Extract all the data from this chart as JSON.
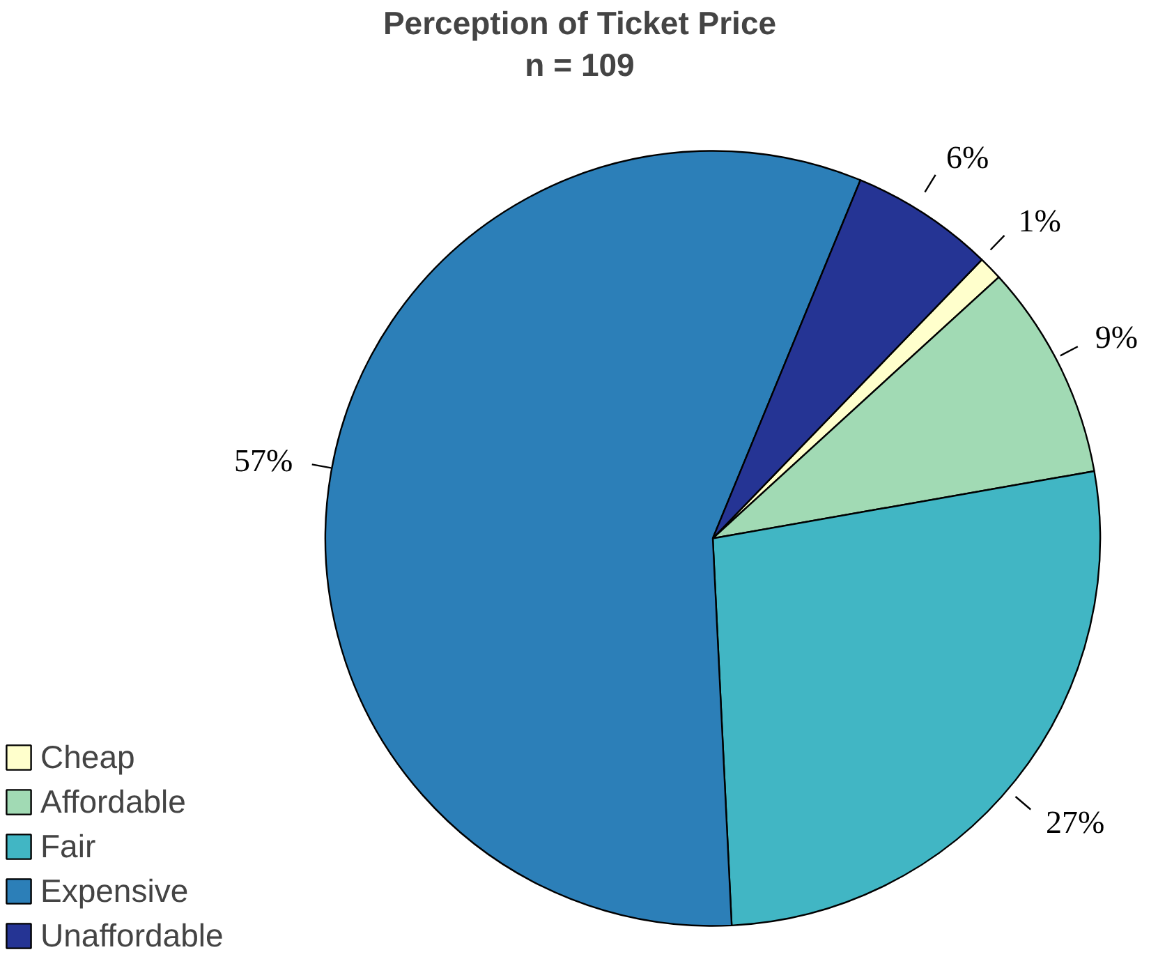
{
  "chart_data": {
    "type": "pie",
    "title": "Perception of Ticket Price",
    "subtitle": "n = 109",
    "categories": [
      "Cheap",
      "Affordable",
      "Fair",
      "Expensive",
      "Unaffordable"
    ],
    "values": [
      1,
      9,
      27,
      57,
      6
    ],
    "colors": [
      "#ffffcc",
      "#a1dab4",
      "#41b6c4",
      "#2c7fb8",
      "#253494"
    ],
    "value_labels": [
      "1%",
      "9%",
      "27%",
      "57%",
      "6%"
    ],
    "legend": "bottom left"
  }
}
